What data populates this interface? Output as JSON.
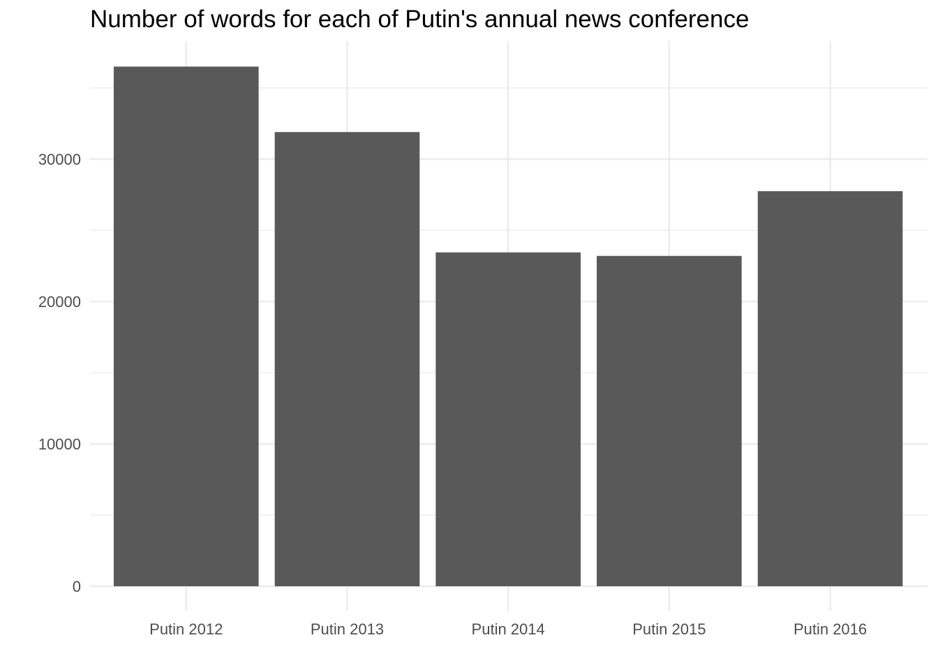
{
  "chart_data": {
    "type": "bar",
    "title": "Number of words for each of Putin's annual news conference",
    "xlabel": "",
    "ylabel": "",
    "categories": [
      "Putin 2012",
      "Putin 2013",
      "Putin 2014",
      "Putin 2015",
      "Putin 2016"
    ],
    "values": [
      36500,
      31900,
      23450,
      23200,
      27750
    ],
    "ylim": [
      0,
      38000
    ],
    "yticks": [
      0,
      10000,
      20000,
      30000
    ],
    "ytick_labels": [
      "0",
      "10000",
      "20000",
      "30000"
    ],
    "grid": true,
    "legend": "none",
    "colors": {
      "bar": "#595959",
      "grid": "#ebebeb",
      "tick_text": "#4d4d4d",
      "title": "#000000"
    }
  }
}
